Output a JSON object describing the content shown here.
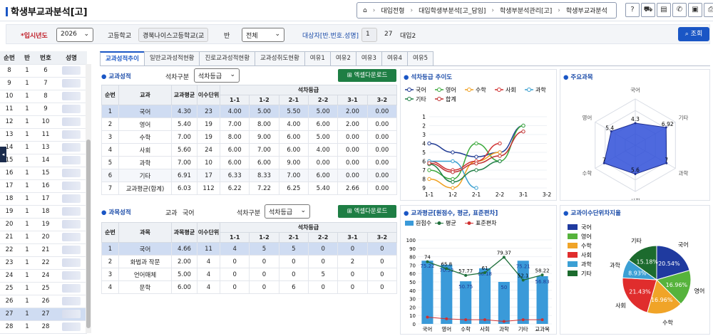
{
  "header": {
    "title": "학생부교과분석[고]",
    "breadcrumb": [
      "대입전형",
      "대입학생부분석[고_담임]",
      "학생부분석관리[고]",
      "학생부교과분석"
    ]
  },
  "filter": {
    "year_label": "입시년도",
    "year": "2026",
    "school_label": "고등학교",
    "school": "경북나이스고등학교(교",
    "class_label": "반",
    "class": "전체",
    "target_label": "대상자[반.번호.성명]",
    "target_no": "1",
    "target_num": "27",
    "target_text": "대입2",
    "search": "조회"
  },
  "students": {
    "headers": [
      "순번",
      "반",
      "번호",
      "성명"
    ],
    "rows": [
      [
        "8",
        "1",
        "6"
      ],
      [
        "9",
        "1",
        "7"
      ],
      [
        "10",
        "1",
        "8"
      ],
      [
        "11",
        "1",
        "9"
      ],
      [
        "12",
        "1",
        "10"
      ],
      [
        "13",
        "1",
        "11"
      ],
      [
        "14",
        "1",
        "13"
      ],
      [
        "15",
        "1",
        "14"
      ],
      [
        "16",
        "1",
        "15"
      ],
      [
        "17",
        "1",
        "16"
      ],
      [
        "18",
        "1",
        "17"
      ],
      [
        "19",
        "1",
        "18"
      ],
      [
        "20",
        "1",
        "19"
      ],
      [
        "21",
        "1",
        "20"
      ],
      [
        "22",
        "1",
        "21"
      ],
      [
        "23",
        "1",
        "22"
      ],
      [
        "24",
        "1",
        "24"
      ],
      [
        "25",
        "1",
        "25"
      ],
      [
        "26",
        "1",
        "26"
      ],
      [
        "27",
        "1",
        "27"
      ],
      [
        "28",
        "1",
        "28"
      ]
    ],
    "selected": 19
  },
  "tabs": [
    "교과성적추이",
    "일반교과성적현황",
    "진로교과성적현황",
    "교과성취도현황",
    "여유1",
    "여유2",
    "여유3",
    "여유4",
    "여유5"
  ],
  "grades": {
    "title": "교과성적",
    "grade_label": "석차구분",
    "grade_value": "석차등급",
    "excel": "엑셀다운로드",
    "headers": [
      "순번",
      "교과",
      "교과평균",
      "이수단위",
      "석차등급",
      "1-1",
      "1-2",
      "2-1",
      "2-2",
      "3-1",
      "3-2"
    ],
    "rows": [
      [
        "1",
        "국어",
        "4.30",
        "23",
        "4.00",
        "5.00",
        "5.50",
        "5.00",
        "2.00",
        "0.00"
      ],
      [
        "2",
        "영어",
        "5.40",
        "19",
        "7.00",
        "8.00",
        "4.00",
        "6.00",
        "2.00",
        "0.00"
      ],
      [
        "3",
        "수학",
        "7.00",
        "19",
        "8.00",
        "9.00",
        "6.00",
        "5.00",
        "0.00",
        "0.00"
      ],
      [
        "4",
        "사회",
        "5.60",
        "24",
        "6.00",
        "7.00",
        "6.00",
        "4.00",
        "0.00",
        "0.00"
      ],
      [
        "5",
        "과학",
        "7.00",
        "10",
        "6.00",
        "6.00",
        "9.00",
        "0.00",
        "0.00",
        "0.00"
      ],
      [
        "6",
        "기타",
        "6.91",
        "17",
        "6.33",
        "8.33",
        "7.00",
        "6.00",
        "0.00",
        "0.00"
      ],
      [
        "7",
        "교과평균(합계)",
        "6.03",
        "112",
        "6.22",
        "7.22",
        "6.25",
        "5.40",
        "2.66",
        "0.00"
      ]
    ]
  },
  "subject": {
    "title": "과목성적",
    "course_label": "교과",
    "course": "국어",
    "grade_label": "석차구분",
    "grade_value": "석차등급",
    "excel": "엑셀다운로드",
    "headers": [
      "순번",
      "과목",
      "과목평균",
      "이수단위",
      "석차등급",
      "1-1",
      "1-2",
      "2-1",
      "2-2",
      "3-1",
      "3-2"
    ],
    "rows": [
      [
        "1",
        "국어",
        "4.66",
        "11",
        "4",
        "5",
        "5",
        "0",
        "0",
        "0"
      ],
      [
        "2",
        "화법과 작문",
        "2.00",
        "4",
        "0",
        "0",
        "0",
        "0",
        "2",
        "0"
      ],
      [
        "3",
        "언어매체",
        "5.00",
        "4",
        "0",
        "0",
        "0",
        "5",
        "0",
        "0"
      ],
      [
        "4",
        "문학",
        "6.00",
        "4",
        "0",
        "0",
        "6",
        "0",
        "0",
        "0"
      ]
    ]
  },
  "chart_data": [
    {
      "type": "line",
      "title": "석차등급 추이도",
      "categories": [
        "1-1",
        "1-2",
        "2-1",
        "2-2",
        "3-1",
        "3-2"
      ],
      "ylim": [
        9,
        1
      ],
      "series": [
        {
          "name": "국어",
          "color": "#1f3a93",
          "values": [
            4,
            5,
            5.5,
            5,
            2,
            null
          ]
        },
        {
          "name": "영어",
          "color": "#3aa83a",
          "values": [
            7,
            8,
            4,
            6,
            2,
            null
          ]
        },
        {
          "name": "수학",
          "color": "#f0a020",
          "values": [
            8,
            9,
            6,
            5,
            null,
            null
          ]
        },
        {
          "name": "사회",
          "color": "#d03030",
          "values": [
            6,
            7,
            6,
            4,
            null,
            null
          ]
        },
        {
          "name": "과학",
          "color": "#3aa0d0",
          "values": [
            6,
            6,
            9,
            null,
            null,
            null
          ]
        },
        {
          "name": "기타",
          "color": "#1e7e44",
          "values": [
            6.33,
            8.33,
            7,
            6,
            null,
            null
          ]
        },
        {
          "name": "합계",
          "color": "#c03030",
          "values": [
            6.22,
            7.22,
            6.25,
            5.4,
            2.66,
            null
          ]
        }
      ]
    },
    {
      "type": "radar",
      "title": "주요과목",
      "categories": [
        "국어",
        "기타",
        "과학",
        "사회",
        "수학",
        "영어"
      ],
      "values": [
        4.3,
        6.92,
        7,
        5.6,
        7,
        5.4
      ]
    },
    {
      "type": "bar",
      "title": "교과평균[원점수, 평균, 표준편차]",
      "categories": [
        "국어",
        "영어",
        "수학",
        "사회",
        "과학",
        "기타",
        "교과목"
      ],
      "ylim": [
        0,
        100
      ],
      "legend": [
        "원점수",
        "평균",
        "표준편차"
      ],
      "values": [
        75.22,
        70.53,
        50.75,
        66.18,
        50,
        75.21,
        56.83
      ],
      "avg": [
        74,
        65.8,
        57.77,
        61,
        79.37,
        52.1,
        58.22
      ],
      "sd": [
        8,
        6,
        5,
        5,
        3,
        5,
        5
      ]
    },
    {
      "type": "pie",
      "title": "교과이수단위차지율",
      "labels": [
        "국어",
        "영어",
        "수학",
        "사회",
        "과학",
        "기타"
      ],
      "values": [
        20.54,
        16.96,
        16.96,
        21.43,
        8.93,
        15.18
      ],
      "colors": [
        "#1f3a9f",
        "#56b33c",
        "#f0a428",
        "#e02d2d",
        "#3b9fd4",
        "#1c6b2e"
      ]
    }
  ]
}
